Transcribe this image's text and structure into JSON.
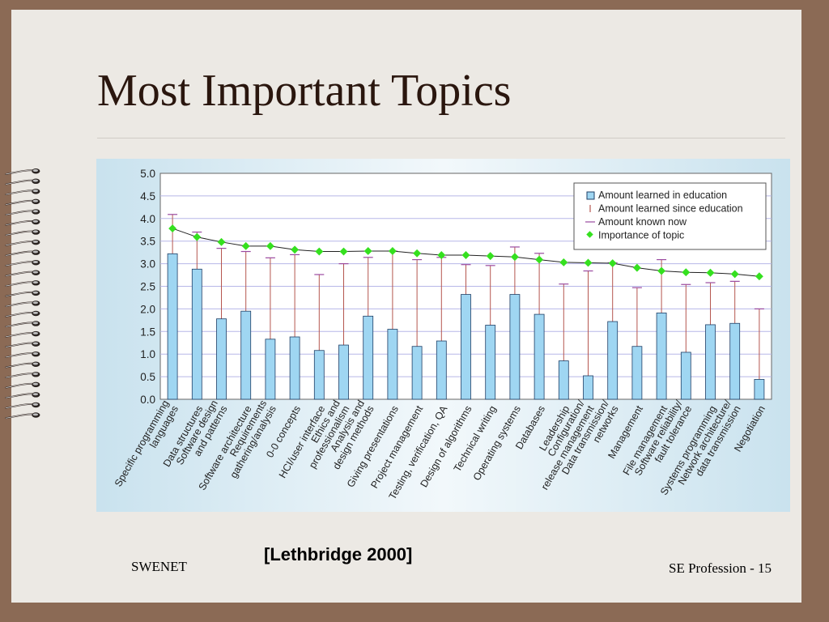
{
  "slide": {
    "title": "Most Important Topics",
    "citation": "[Lethbridge 2000]",
    "footer_left": "SWENET",
    "footer_right": "SE Profession - 15"
  },
  "colors": {
    "bar": "#9fd6f2",
    "bar_stroke": "#1f3f66",
    "since_line": "#b5564f",
    "known_now": "#9a4aa0",
    "importance": "#35e01f",
    "grid": "#b7b7e8",
    "panel": "#d8eaf3"
  },
  "chart_data": {
    "type": "bar",
    "ylim": [
      0,
      5
    ],
    "yticks": [
      "0.0",
      "0.5",
      "1.0",
      "1.5",
      "2.0",
      "2.5",
      "3.0",
      "3.5",
      "4.0",
      "4.5",
      "5.0"
    ],
    "grid": true,
    "legend_position": "top-right",
    "categories": [
      "Specific programming languages",
      "Data structures",
      "Software design and patterns",
      "Software architecture",
      "Requirements gathering/analysis",
      "0-0 concepts",
      "HCI/user interface",
      "Ethics and professionalism",
      "Analysis and design methods",
      "Giving presentations",
      "Project management",
      "Testing, verification, QA",
      "Design of algorithms",
      "Technical writing",
      "Operating systems",
      "Databases",
      "Leadership",
      "Configuration/ release management",
      "Data transmission/ networks",
      "Management",
      "File management",
      "Software reliability/ fault tolerance",
      "Systems programming",
      "Network architecture/ data transmission",
      "Negotiation"
    ],
    "category_lines": [
      [
        "Specific programming",
        "languages"
      ],
      [
        "Data structures"
      ],
      [
        "Software design",
        "and patterns"
      ],
      [
        "Software architecture"
      ],
      [
        "Requirements",
        "gathering/analysis"
      ],
      [
        "0-0 concepts"
      ],
      [
        "HCI/user interface"
      ],
      [
        "Ethics and",
        "professionalism"
      ],
      [
        "Analysis and",
        "design methods"
      ],
      [
        "Giving presentations"
      ],
      [
        "Project management"
      ],
      [
        "Testing, verification, QA"
      ],
      [
        "Design of algorithms"
      ],
      [
        "Technical writing"
      ],
      [
        "Operating systems"
      ],
      [
        "Databases"
      ],
      [
        "Leadership"
      ],
      [
        "Configuration/",
        "release management"
      ],
      [
        "Data transmission/",
        "networks"
      ],
      [
        "Management"
      ],
      [
        "File management"
      ],
      [
        "Software reliability/",
        "fault tolerance"
      ],
      [
        "Systems programming"
      ],
      [
        "Network architecture/",
        "data transmission"
      ],
      [
        "Negotiation"
      ]
    ],
    "series": [
      {
        "name": "Amount learned in education",
        "type": "bar",
        "values": [
          3.22,
          2.88,
          1.78,
          1.95,
          1.33,
          1.38,
          1.08,
          1.2,
          1.84,
          1.55,
          1.17,
          1.29,
          2.32,
          1.64,
          2.32,
          1.88,
          0.85,
          0.52,
          1.72,
          1.17,
          1.91,
          1.04,
          1.65,
          1.68,
          0.44
        ]
      },
      {
        "name": "Amount learned since education",
        "type": "range",
        "values": [
          0.87,
          0.82,
          1.56,
          1.32,
          1.8,
          1.82,
          1.68,
          1.8,
          1.3,
          1.73,
          1.92,
          1.85,
          0.66,
          1.32,
          1.05,
          1.35,
          1.7,
          2.32,
          1.3,
          1.3,
          1.18,
          1.5,
          0.93,
          0.93,
          1.56
        ]
      },
      {
        "name": "Amount known now",
        "type": "marker",
        "values": [
          4.09,
          3.7,
          3.34,
          3.27,
          3.13,
          3.2,
          2.76,
          3.0,
          3.14,
          3.28,
          3.09,
          3.14,
          2.98,
          2.96,
          3.37,
          3.23,
          2.55,
          2.84,
          3.02,
          2.47,
          3.09,
          2.54,
          2.58,
          2.61,
          2.0
        ]
      },
      {
        "name": "Importance of topic",
        "type": "line",
        "values": [
          3.78,
          3.59,
          3.48,
          3.39,
          3.39,
          3.31,
          3.27,
          3.27,
          3.28,
          3.28,
          3.23,
          3.19,
          3.19,
          3.17,
          3.15,
          3.09,
          3.03,
          3.02,
          3.01,
          2.91,
          2.84,
          2.81,
          2.8,
          2.77,
          2.72
        ]
      }
    ]
  }
}
